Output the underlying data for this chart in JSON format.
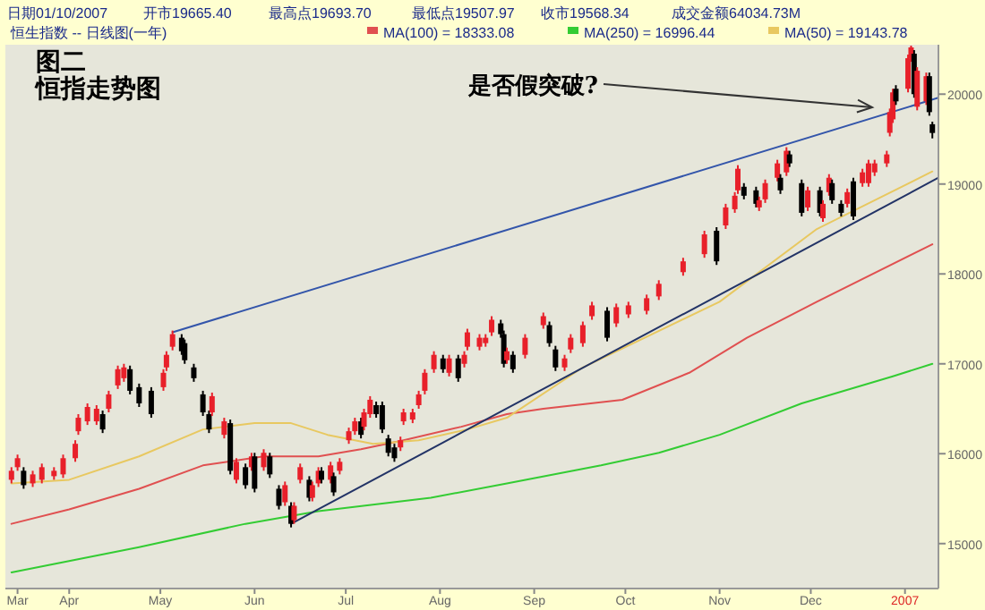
{
  "chart_data": {
    "type": "candlestick",
    "title": "恒指走势图",
    "subtitle": "图二",
    "annotations": [
      "日期01/10/2007",
      "开市19665.40",
      "最高点19693.70",
      "最低点19507.97",
      "收市19568.34",
      "成交金额64034.73M",
      "恒生指数 -- 日线图(一年)",
      "是否假突破?"
    ],
    "x": [
      "2006-03-13",
      "2006-03-15",
      "2006-03-17",
      "2006-03-20",
      "2006-03-23",
      "2006-03-27",
      "2006-03-30",
      "2006-04-03",
      "2006-04-04",
      "2006-04-07",
      "2006-04-10",
      "2006-04-12",
      "2006-04-14",
      "2006-04-17",
      "2006-04-19",
      "2006-04-21",
      "2006-04-24",
      "2006-04-28",
      "2006-05-02",
      "2006-05-03",
      "2006-05-05",
      "2006-05-08",
      "2006-05-09",
      "2006-05-12",
      "2006-05-15",
      "2006-05-17",
      "2006-05-18",
      "2006-05-22",
      "2006-05-24",
      "2006-05-26",
      "2006-05-29",
      "2006-05-31",
      "2006-06-01",
      "2006-06-04",
      "2006-06-06",
      "2006-06-09",
      "2006-06-11",
      "2006-06-13",
      "2006-06-14",
      "2006-06-16",
      "2006-06-19",
      "2006-06-20",
      "2006-06-22",
      "2006-06-23",
      "2006-06-26",
      "2006-06-27",
      "2006-06-29",
      "2006-07-02",
      "2006-07-04",
      "2006-07-06",
      "2006-07-07",
      "2006-07-09",
      "2006-07-11",
      "2006-07-13",
      "2006-07-15",
      "2006-07-17",
      "2006-07-19",
      "2006-07-20",
      "2006-07-23",
      "2006-07-25",
      "2006-07-27",
      "2006-07-30",
      "2006-08-02",
      "2006-08-04",
      "2006-08-07",
      "2006-08-09",
      "2006-08-10",
      "2006-08-14",
      "2006-08-16",
      "2006-08-18",
      "2006-08-21",
      "2006-08-22",
      "2006-08-23",
      "2006-08-25",
      "2006-08-29",
      "2006-09-04",
      "2006-09-06",
      "2006-09-08",
      "2006-09-11",
      "2006-09-13",
      "2006-09-17",
      "2006-09-20",
      "2006-09-25",
      "2006-09-28",
      "2006-10-02",
      "2006-10-08",
      "2006-10-12",
      "2006-10-20",
      "2006-10-27",
      "2006-10-31",
      "2006-11-03",
      "2006-11-06",
      "2006-11-07",
      "2006-11-09",
      "2006-11-13",
      "2006-11-14",
      "2006-11-16",
      "2006-11-20",
      "2006-11-21",
      "2006-11-23",
      "2006-11-24",
      "2006-11-28",
      "2006-11-30",
      "2006-12-04",
      "2006-12-05",
      "2006-12-07",
      "2006-12-08",
      "2006-12-11",
      "2006-12-13",
      "2006-12-15",
      "2006-12-18",
      "2006-12-20",
      "2006-12-22",
      "2006-12-26",
      "2006-12-27",
      "2006-12-28",
      "2006-12-29",
      "2007-01-02",
      "2007-01-03",
      "2007-01-04",
      "2007-01-05",
      "2007-01-08",
      "2007-01-09",
      "2007-01-10"
    ],
    "ohlc": [
      [
        15710,
        15850,
        15670,
        15810
      ],
      [
        15850,
        15990,
        15810,
        15950
      ],
      [
        15810,
        15850,
        15610,
        15650
      ],
      [
        15670,
        15810,
        15630,
        15770
      ],
      [
        15710,
        15890,
        15670,
        15850
      ],
      [
        15750,
        15850,
        15710,
        15810
      ],
      [
        15770,
        15990,
        15730,
        15950
      ],
      [
        15950,
        16150,
        15910,
        16110
      ],
      [
        16250,
        16440,
        16210,
        16400
      ],
      [
        16360,
        16560,
        16320,
        16520
      ],
      [
        16360,
        16540,
        16320,
        16500
      ],
      [
        16440,
        16480,
        16230,
        16270
      ],
      [
        16500,
        16700,
        16460,
        16660
      ],
      [
        16760,
        16980,
        16720,
        16940
      ],
      [
        16840,
        17000,
        16800,
        16960
      ],
      [
        16940,
        16980,
        16660,
        16700
      ],
      [
        16740,
        16780,
        16520,
        16560
      ],
      [
        16700,
        16740,
        16400,
        16440
      ],
      [
        16740,
        16940,
        16700,
        16900
      ],
      [
        16960,
        17140,
        16920,
        17100
      ],
      [
        17190,
        17370,
        17150,
        17330
      ],
      [
        17290,
        17330,
        17100,
        17140
      ],
      [
        17230,
        17270,
        17000,
        17040
      ],
      [
        16960,
        17000,
        16800,
        16840
      ],
      [
        16660,
        16700,
        16420,
        16460
      ],
      [
        16440,
        16480,
        16230,
        16270
      ],
      [
        16460,
        16680,
        16420,
        16640
      ],
      [
        16210,
        16400,
        16170,
        16360
      ],
      [
        16340,
        16380,
        15770,
        15810
      ],
      [
        15710,
        15950,
        15670,
        15910
      ],
      [
        15850,
        15890,
        15610,
        15650
      ],
      [
        15850,
        16010,
        15810,
        15970
      ],
      [
        15970,
        16010,
        15570,
        15610
      ],
      [
        15850,
        16050,
        15810,
        16010
      ],
      [
        15970,
        16010,
        15730,
        15770
      ],
      [
        15610,
        15650,
        15380,
        15420
      ],
      [
        15460,
        15690,
        15420,
        15650
      ],
      [
        15420,
        15460,
        15180,
        15220
      ],
      [
        15260,
        15460,
        15220,
        15420
      ],
      [
        15710,
        15890,
        15670,
        15850
      ],
      [
        15710,
        15750,
        15470,
        15510
      ],
      [
        15510,
        15690,
        15470,
        15650
      ],
      [
        15670,
        15850,
        15630,
        15810
      ],
      [
        15810,
        15850,
        15670,
        15710
      ],
      [
        15710,
        15910,
        15670,
        15870
      ],
      [
        15750,
        15790,
        15530,
        15570
      ],
      [
        15810,
        15950,
        15770,
        15910
      ],
      [
        16150,
        16290,
        16110,
        16250
      ],
      [
        16250,
        16400,
        16210,
        16360
      ],
      [
        16360,
        16400,
        16170,
        16210
      ],
      [
        16300,
        16500,
        16260,
        16460
      ],
      [
        16440,
        16640,
        16400,
        16600
      ],
      [
        16540,
        16580,
        16400,
        16440
      ],
      [
        16540,
        16580,
        16230,
        16270
      ],
      [
        16170,
        16210,
        15970,
        16010
      ],
      [
        16070,
        16110,
        15910,
        15950
      ],
      [
        16070,
        16190,
        16030,
        16150
      ],
      [
        16360,
        16500,
        16320,
        16460
      ],
      [
        16380,
        16500,
        16340,
        16460
      ],
      [
        16540,
        16700,
        16500,
        16660
      ],
      [
        16700,
        16940,
        16660,
        16900
      ],
      [
        16940,
        17140,
        16900,
        17100
      ],
      [
        17060,
        17100,
        16900,
        16940
      ],
      [
        16900,
        17100,
        16860,
        17060
      ],
      [
        17060,
        17100,
        16800,
        16840
      ],
      [
        17000,
        17140,
        16960,
        17100
      ],
      [
        17190,
        17390,
        17150,
        17350
      ],
      [
        17190,
        17330,
        17150,
        17290
      ],
      [
        17230,
        17330,
        17190,
        17290
      ],
      [
        17350,
        17530,
        17310,
        17490
      ],
      [
        17450,
        17490,
        17290,
        17330
      ],
      [
        17330,
        17370,
        16960,
        17000
      ],
      [
        17040,
        17180,
        17000,
        17140
      ],
      [
        17100,
        17140,
        16900,
        16940
      ],
      [
        17100,
        17330,
        17060,
        17290
      ],
      [
        17430,
        17570,
        17390,
        17530
      ],
      [
        17430,
        17470,
        17190,
        17230
      ],
      [
        17160,
        17200,
        16920,
        16960
      ],
      [
        16960,
        17100,
        16920,
        17060
      ],
      [
        17160,
        17330,
        17120,
        17290
      ],
      [
        17230,
        17470,
        17190,
        17430
      ],
      [
        17530,
        17690,
        17490,
        17650
      ],
      [
        17590,
        17630,
        17250,
        17290
      ],
      [
        17450,
        17670,
        17410,
        17630
      ],
      [
        17550,
        17690,
        17510,
        17650
      ],
      [
        17590,
        17770,
        17550,
        17730
      ],
      [
        17750,
        17930,
        17710,
        17890
      ],
      [
        18020,
        18180,
        17980,
        18140
      ],
      [
        18220,
        18480,
        18180,
        18440
      ],
      [
        18480,
        18520,
        18100,
        18140
      ],
      [
        18540,
        18780,
        18500,
        18740
      ],
      [
        18720,
        18910,
        18680,
        18870
      ],
      [
        18930,
        19210,
        18890,
        19170
      ],
      [
        18970,
        19010,
        18830,
        18870
      ],
      [
        18930,
        18970,
        18740,
        18780
      ],
      [
        18740,
        18860,
        18700,
        18820
      ],
      [
        18830,
        19050,
        18790,
        19010
      ],
      [
        19070,
        19270,
        19030,
        19230
      ],
      [
        19070,
        19110,
        18890,
        18930
      ],
      [
        19130,
        19410,
        19090,
        19370
      ],
      [
        19330,
        19370,
        19190,
        19230
      ],
      [
        19010,
        19050,
        18640,
        18680
      ],
      [
        18740,
        18970,
        18700,
        18930
      ],
      [
        18930,
        18970,
        18640,
        18680
      ],
      [
        18620,
        18820,
        18580,
        18780
      ],
      [
        18910,
        19110,
        18870,
        19070
      ],
      [
        19010,
        19050,
        18780,
        18820
      ],
      [
        18780,
        18820,
        18640,
        18680
      ],
      [
        18780,
        18950,
        18740,
        18910
      ],
      [
        19030,
        19070,
        18600,
        18640
      ],
      [
        19010,
        19170,
        18970,
        19130
      ],
      [
        19010,
        19270,
        18970,
        19230
      ],
      [
        19130,
        19270,
        19090,
        19230
      ],
      [
        19230,
        19370,
        19190,
        19330
      ],
      [
        19570,
        19840,
        19530,
        19800
      ],
      [
        19720,
        20060,
        19680,
        20020
      ],
      [
        20060,
        20100,
        19880,
        19920
      ],
      [
        20060,
        20440,
        20020,
        20400
      ],
      [
        20400,
        20540,
        20360,
        20520
      ],
      [
        20450,
        20490,
        19960,
        20000
      ],
      [
        19860,
        20300,
        19820,
        20260
      ],
      [
        19920,
        20240,
        19880,
        20200
      ],
      [
        20200,
        20240,
        19760,
        19800
      ],
      [
        19665.4,
        19693.7,
        19507.97,
        19568.34
      ]
    ],
    "colors": [
      "#e8202a",
      "#e8202a",
      "#000000",
      "#e8202a",
      "#e8202a",
      "#e8202a",
      "#e8202a",
      "#e8202a",
      "#e8202a",
      "#e8202a",
      "#e8202a",
      "#000000",
      "#e8202a",
      "#e8202a",
      "#e8202a",
      "#000000",
      "#000000",
      "#000000",
      "#e8202a",
      "#e8202a",
      "#e8202a",
      "#000000",
      "#000000",
      "#000000",
      "#000000",
      "#000000",
      "#e8202a",
      "#e8202a",
      "#000000",
      "#e8202a",
      "#000000",
      "#e8202a",
      "#000000",
      "#e8202a",
      "#000000",
      "#000000",
      "#e8202a",
      "#000000",
      "#e8202a",
      "#e8202a",
      "#000000",
      "#e8202a",
      "#e8202a",
      "#000000",
      "#e8202a",
      "#000000",
      "#e8202a",
      "#e8202a",
      "#e8202a",
      "#000000",
      "#e8202a",
      "#e8202a",
      "#000000",
      "#000000",
      "#000000",
      "#000000",
      "#e8202a",
      "#e8202a",
      "#e8202a",
      "#e8202a",
      "#e8202a",
      "#e8202a",
      "#000000",
      "#e8202a",
      "#000000",
      "#e8202a",
      "#e8202a",
      "#e8202a",
      "#e8202a",
      "#e8202a",
      "#000000",
      "#000000",
      "#e8202a",
      "#000000",
      "#e8202a",
      "#e8202a",
      "#000000",
      "#000000",
      "#e8202a",
      "#e8202a",
      "#e8202a",
      "#e8202a",
      "#000000",
      "#e8202a",
      "#e8202a",
      "#e8202a",
      "#e8202a",
      "#e8202a",
      "#e8202a",
      "#000000",
      "#e8202a",
      "#e8202a",
      "#e8202a",
      "#000000",
      "#000000",
      "#e8202a",
      "#e8202a",
      "#e8202a",
      "#000000",
      "#e8202a",
      "#000000",
      "#000000",
      "#e8202a",
      "#000000",
      "#e8202a",
      "#e8202a",
      "#000000",
      "#000000",
      "#e8202a",
      "#000000",
      "#e8202a",
      "#e8202a",
      "#e8202a",
      "#e8202a",
      "#e8202a",
      "#e8202a",
      "#000000",
      "#e8202a",
      "#e8202a",
      "#000000",
      "#e8202a",
      "#e8202a",
      "#000000",
      "#000000"
    ],
    "series": [
      {
        "type": "line",
        "name": "MA(100) = 18333.08",
        "color": "#e05050",
        "x": [
          "2006-03-13",
          "2006-04-01",
          "2006-04-24",
          "2006-05-15",
          "2006-06-04",
          "2006-06-22",
          "2006-07-06",
          "2006-07-20",
          "2006-08-08",
          "2006-08-23",
          "2006-09-04",
          "2006-09-30",
          "2006-10-22",
          "2006-11-10",
          "2006-12-03",
          "2007-01-10"
        ],
        "values": [
          15220,
          15380,
          15610,
          15870,
          15970,
          15970,
          16050,
          16150,
          16300,
          16440,
          16500,
          16600,
          16900,
          17290,
          17690,
          18330
        ]
      },
      {
        "type": "line",
        "name": "MA(250) = 16996.44",
        "color": "#33cc33",
        "x": [
          "2006-03-13",
          "2006-04-24",
          "2006-05-29",
          "2006-06-22",
          "2006-07-29",
          "2006-08-23",
          "2006-09-23",
          "2006-10-12",
          "2006-11-01",
          "2006-11-28",
          "2006-12-28",
          "2007-01-10"
        ],
        "values": [
          14680,
          14960,
          15220,
          15360,
          15510,
          15670,
          15870,
          16010,
          16210,
          16560,
          16860,
          17000
        ]
      },
      {
        "type": "line",
        "name": "MA(50) = 19143.78",
        "color": "#e8c860",
        "x": [
          "2006-03-13",
          "2006-04-01",
          "2006-04-24",
          "2006-05-15",
          "2006-06-01",
          "2006-06-13",
          "2006-06-25",
          "2006-07-10",
          "2006-07-25",
          "2006-08-10",
          "2006-08-23",
          "2006-09-17",
          "2006-11-01",
          "2006-12-03",
          "2007-01-10"
        ],
        "values": [
          15670,
          15710,
          15970,
          16270,
          16340,
          16340,
          16210,
          16110,
          16150,
          16270,
          16400,
          16960,
          17690,
          18500,
          19140
        ]
      },
      {
        "type": "line",
        "color": "#3355aa",
        "x": [
          "2006-05-05",
          "2007-01-12"
        ],
        "values": [
          17350,
          19960
        ]
      },
      {
        "type": "line",
        "color": "#223366",
        "x": [
          "2006-06-13",
          "2007-01-12"
        ],
        "values": [
          15220,
          19070
        ]
      }
    ],
    "legend": "top",
    "xlim": [
      "2006-03-11",
      "2007-01-12"
    ],
    "xticks": [
      {
        "value": "2006-03-15",
        "label": "Mar"
      },
      {
        "value": "2006-04-01",
        "label": "Apr"
      },
      {
        "value": "2006-05-01",
        "label": "May"
      },
      {
        "value": "2006-06-01",
        "label": "Jun"
      },
      {
        "value": "2006-07-01",
        "label": "Jul"
      },
      {
        "value": "2006-08-01",
        "label": "Aug"
      },
      {
        "value": "2006-09-01",
        "label": "Sep"
      },
      {
        "value": "2006-10-01",
        "label": "Oct"
      },
      {
        "value": "2006-11-01",
        "label": "Nov"
      },
      {
        "value": "2006-12-01",
        "label": "Dec"
      },
      {
        "value": "2007-01-01",
        "label": "2007"
      }
    ],
    "ylim": [
      14500,
      20550
    ],
    "yticks": [
      15000,
      16000,
      17000,
      18000,
      19000,
      20000
    ]
  }
}
